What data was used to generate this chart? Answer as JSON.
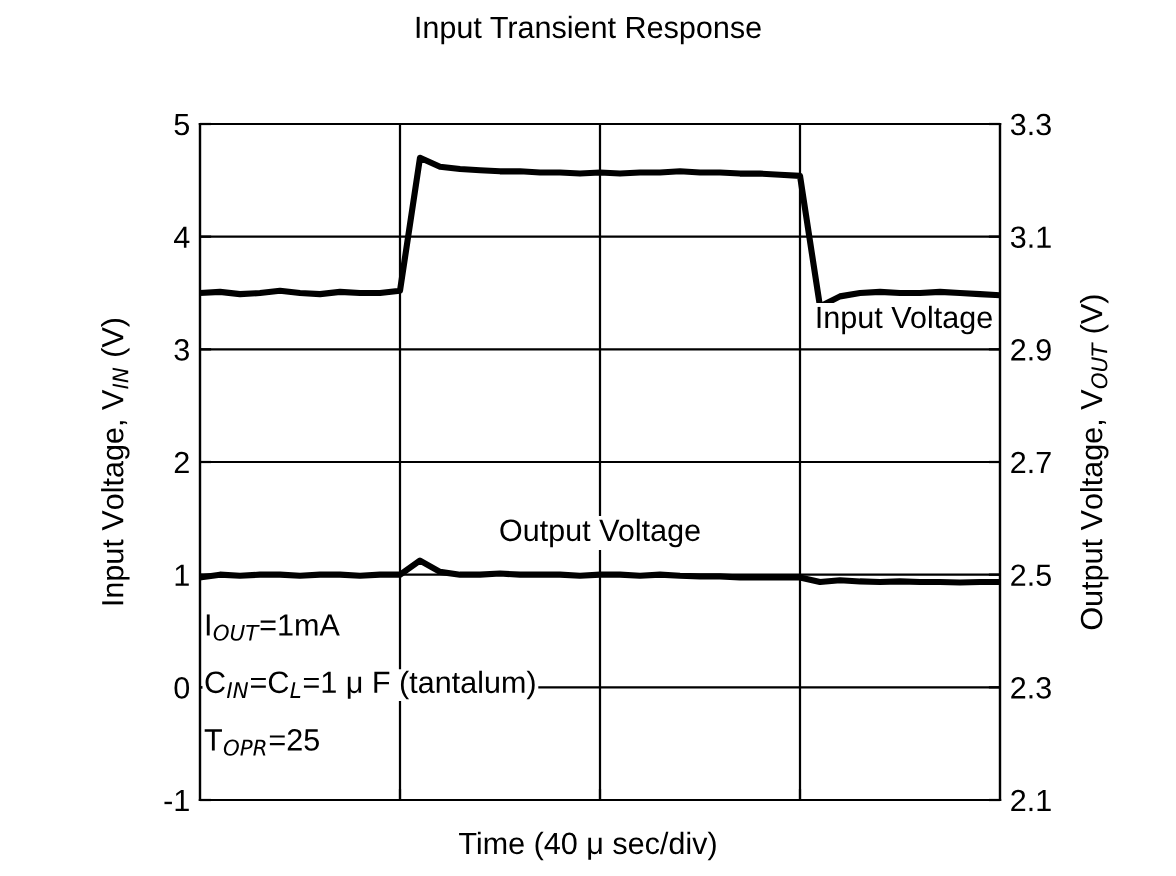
{
  "chart_data": {
    "type": "line",
    "title": "Input Transient Response",
    "xlabel": "Time (40 μ sec/div)",
    "ylabel": "Input Voltage, V$_{IN}$ (V)",
    "y2label": "Output Voltage, V$_{OUT}$ (V)",
    "categories": [
      null,
      null,
      null,
      null,
      null,
      null,
      null,
      null,
      null,
      null,
      null,
      null,
      null,
      null,
      null,
      null,
      null,
      null,
      null,
      null,
      null,
      null,
      null,
      null,
      null,
      null,
      null,
      null,
      null,
      null,
      null,
      null,
      null,
      null,
      null,
      null,
      null,
      null,
      null,
      null,
      null
    ],
    "ylim": [
      -1,
      5
    ],
    "yticks": [
      -1,
      0,
      1,
      2,
      3,
      4,
      5
    ],
    "y2lim": [
      2.1,
      3.3
    ],
    "y2ticks": [
      2.1,
      2.3,
      2.5,
      2.7,
      2.9,
      3.1,
      3.3
    ],
    "grid": true,
    "legend": false,
    "series": [
      {
        "name": "Input Voltage",
        "color": "#000000",
        "values": [
          3.5,
          3.51,
          3.49,
          3.5,
          3.52,
          3.5,
          3.49,
          3.51,
          3.5,
          3.5,
          3.52,
          4.7,
          4.62,
          4.6,
          4.59,
          4.58,
          4.58,
          4.57,
          4.57,
          4.56,
          4.57,
          4.56,
          4.57,
          4.57,
          4.58,
          4.57,
          4.57,
          4.56,
          4.56,
          4.55,
          4.54,
          3.38,
          3.47,
          3.5,
          3.51,
          3.5,
          3.5,
          3.51,
          3.5,
          3.49,
          3.48
        ]
      },
      {
        "name": "Output Voltage",
        "color": "#000000",
        "axis": "y2",
        "values": [
          2.495,
          2.5,
          2.498,
          2.5,
          2.5,
          2.498,
          2.5,
          2.5,
          2.498,
          2.5,
          2.5,
          2.525,
          2.505,
          2.5,
          2.5,
          2.502,
          2.5,
          2.5,
          2.5,
          2.498,
          2.5,
          2.5,
          2.498,
          2.5,
          2.498,
          2.497,
          2.497,
          2.495,
          2.495,
          2.495,
          2.495,
          2.487,
          2.49,
          2.488,
          2.487,
          2.488,
          2.487,
          2.487,
          2.486,
          2.487,
          2.487
        ]
      }
    ],
    "annotations": [
      "I$_{OUT}$=1mA",
      "C$_{IN}$=C$_{L}$=1 μ F (tantalum)",
      "T$_{OPR}$=25"
    ]
  }
}
